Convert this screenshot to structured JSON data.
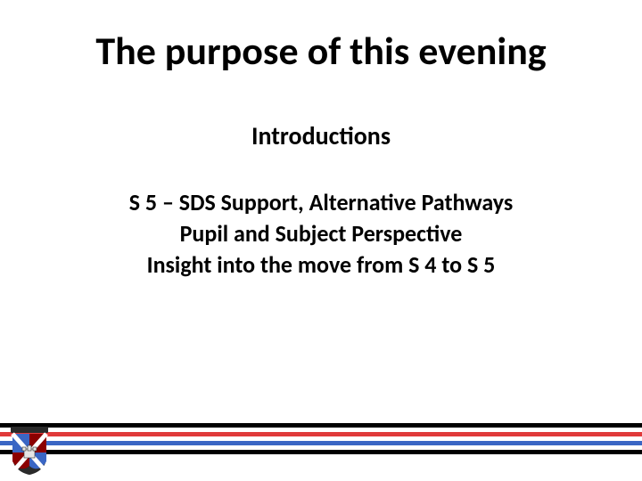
{
  "title": {
    "text": "The purpose of this evening",
    "fontsize": 44,
    "weight": 700,
    "color": "#000000"
  },
  "subtitle": {
    "text": "Introductions",
    "fontsize": 28,
    "weight": 700,
    "color": "#000000"
  },
  "body": {
    "lines": [
      "S 5 – SDS Support, Alternative Pathways",
      "Pupil and Subject Perspective",
      "Insight into the move from S 4 to S 5"
    ],
    "fontsize": 26,
    "weight": 700,
    "color": "#000000",
    "line_height": 1.35
  },
  "footer": {
    "line_colors": [
      "#000000",
      "#ffffff",
      "#e03a3a",
      "#ffffff",
      "#3a66c4",
      "#ffffff",
      "#000000"
    ],
    "line_height": 5
  },
  "crest": {
    "banner_fill": "#2a2a2a",
    "banner_text_color": "#ffffff",
    "shield_border": "#2a2a2a",
    "quad_blue": "#3a66c4",
    "quad_maroon": "#8b0000",
    "saltire": "#ffffff",
    "castle_fill": "#e6e6e6"
  },
  "background_color": "#ffffff"
}
